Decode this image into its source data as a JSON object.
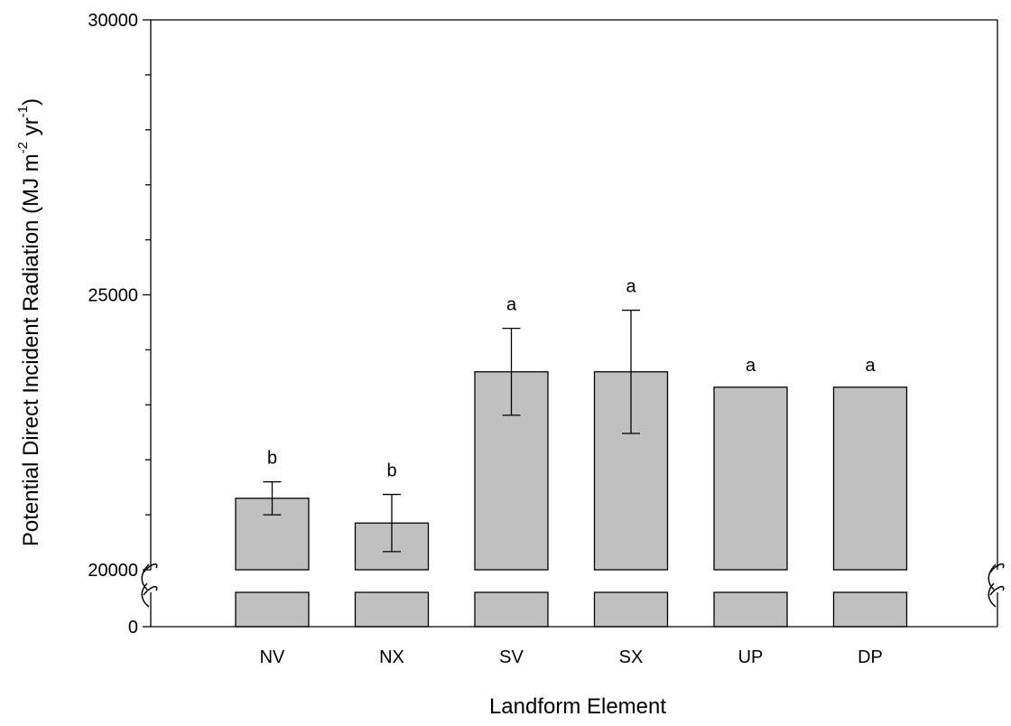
{
  "chart_data": {
    "type": "bar",
    "xlabel": "Landform Element",
    "ylabel": {
      "prefix": "Potential Direct Incident Radiation (MJ m",
      "exp1": "-2",
      "mid": " yr",
      "exp2": "-1",
      "suffix": ")"
    },
    "categories": [
      "NV",
      "NX",
      "SV",
      "SX",
      "UP",
      "DP"
    ],
    "values": [
      21300,
      20850,
      23600,
      23600,
      23320,
      23320
    ],
    "errors": [
      300,
      520,
      790,
      1120,
      0,
      0
    ],
    "significance": [
      "b",
      "b",
      "a",
      "a",
      "a",
      "a"
    ],
    "y_axis": {
      "type": "broken",
      "lower_segment": [
        0,
        20000
      ],
      "upper_segment": [
        20000,
        30000
      ],
      "labeled_ticks": [
        "0",
        "20000",
        "25000",
        "30000"
      ],
      "upper_minor_step": 1000
    },
    "bar_color": "#c0c0c0",
    "grid": false
  }
}
